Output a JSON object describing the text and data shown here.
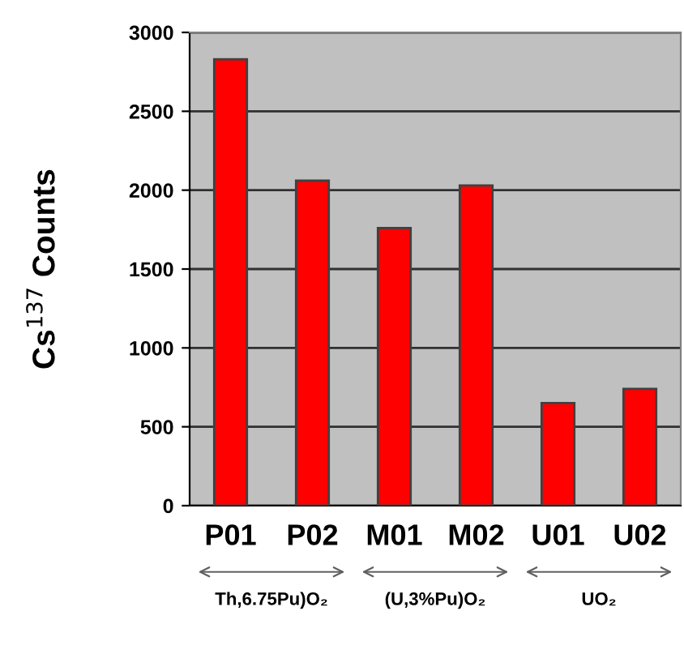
{
  "chart_data": {
    "type": "bar",
    "ylabel": "Cs$^{137}$ Counts",
    "categories": [
      "P01",
      "P02",
      "M01",
      "M02",
      "U01",
      "U02"
    ],
    "values": [
      2830,
      2060,
      1760,
      2030,
      650,
      740
    ],
    "color": "#ff0000",
    "ylim": [
      0,
      3000
    ],
    "yticks": [
      0,
      500,
      1000,
      1500,
      2000,
      2500,
      3000
    ],
    "grid": "y",
    "annotations": [
      "Th,6.75Pu)O₂",
      "(U,3%Pu)O₂",
      "UO₂"
    ]
  }
}
